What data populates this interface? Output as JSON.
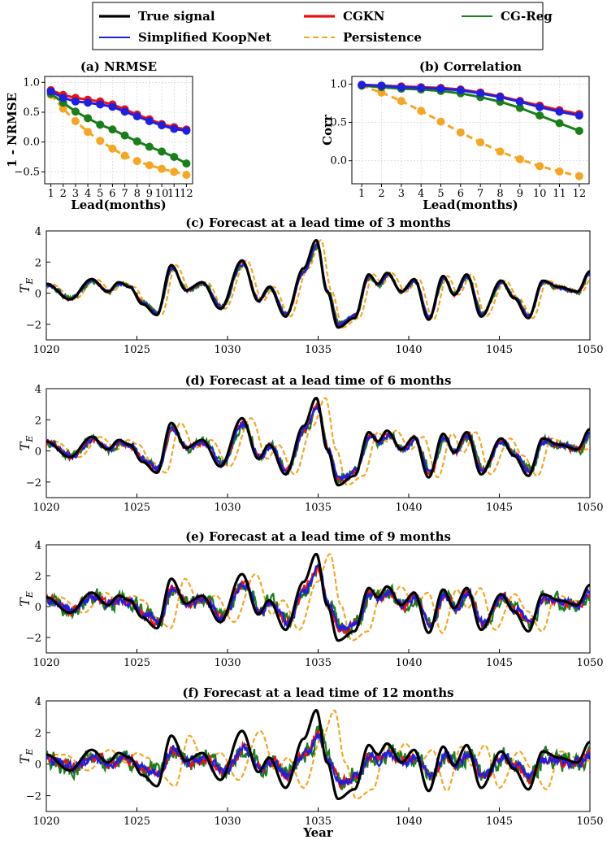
{
  "legend": {
    "entries": [
      {
        "name": "True signal",
        "color": "#000000",
        "dash": false
      },
      {
        "name": "Simplified KoopNet",
        "color": "#1f1fe0",
        "dash": false
      },
      {
        "name": "CGKN",
        "color": "#ee1111",
        "dash": false
      },
      {
        "name": "Persistence",
        "color": "#f5a623",
        "dash": true
      },
      {
        "name": "CG-Reg",
        "color": "#1a7f1a",
        "dash": false
      }
    ]
  },
  "chart_data": [
    {
      "type": "line",
      "title": "(a) NRMSE",
      "xlabel": "Lead(months)",
      "ylabel": "1 - NRMSE",
      "x": [
        1,
        2,
        3,
        4,
        5,
        6,
        7,
        8,
        9,
        10,
        11,
        12
      ],
      "xlim": [
        0.5,
        12.5
      ],
      "ylim": [
        -0.7,
        1.1
      ],
      "yticks": [
        1.0,
        0.5,
        0.0,
        -0.5
      ],
      "ytick_labels": [
        "1.0",
        "0.5",
        "0.0",
        "−0.5"
      ],
      "series": [
        {
          "name": "Persistence",
          "color": "#f5a623",
          "dash": true,
          "values": [
            0.79,
            0.56,
            0.35,
            0.17,
            0.02,
            -0.11,
            -0.23,
            -0.32,
            -0.39,
            -0.45,
            -0.5,
            -0.55
          ]
        },
        {
          "name": "CG-Reg",
          "color": "#1a7f1a",
          "dash": false,
          "values": [
            0.81,
            0.66,
            0.51,
            0.4,
            0.29,
            0.21,
            0.11,
            0.01,
            -0.08,
            -0.16,
            -0.25,
            -0.36
          ]
        },
        {
          "name": "CGKN",
          "color": "#ee1111",
          "dash": false,
          "values": [
            0.87,
            0.79,
            0.74,
            0.71,
            0.68,
            0.63,
            0.55,
            0.46,
            0.38,
            0.3,
            0.25,
            0.21
          ]
        },
        {
          "name": "Simplified KoopNet",
          "color": "#1f1fe0",
          "dash": false,
          "values": [
            0.85,
            0.74,
            0.68,
            0.66,
            0.63,
            0.59,
            0.51,
            0.43,
            0.35,
            0.28,
            0.22,
            0.19
          ]
        }
      ]
    },
    {
      "type": "line",
      "title": "(b) Correlation",
      "xlabel": "Lead(months)",
      "ylabel": "Corr",
      "x": [
        1,
        2,
        3,
        4,
        5,
        6,
        7,
        8,
        9,
        10,
        11,
        12
      ],
      "xlim": [
        0.5,
        12.5
      ],
      "ylim": [
        -0.3,
        1.1
      ],
      "yticks": [
        1.0,
        0.5,
        0.0
      ],
      "ytick_labels": [
        "1.0",
        "0.5",
        "0.0"
      ],
      "series": [
        {
          "name": "Persistence",
          "color": "#f5a623",
          "dash": true,
          "values": [
            0.98,
            0.89,
            0.78,
            0.65,
            0.51,
            0.37,
            0.24,
            0.12,
            0.02,
            -0.07,
            -0.14,
            -0.2
          ]
        },
        {
          "name": "CG-Reg",
          "color": "#1a7f1a",
          "dash": false,
          "values": [
            0.98,
            0.96,
            0.94,
            0.93,
            0.91,
            0.88,
            0.83,
            0.77,
            0.69,
            0.59,
            0.49,
            0.39
          ]
        },
        {
          "name": "CGKN",
          "color": "#ee1111",
          "dash": false,
          "values": [
            0.99,
            0.98,
            0.97,
            0.96,
            0.95,
            0.93,
            0.89,
            0.84,
            0.78,
            0.72,
            0.66,
            0.61
          ]
        },
        {
          "name": "Simplified KoopNet",
          "color": "#1f1fe0",
          "dash": false,
          "values": [
            0.99,
            0.98,
            0.96,
            0.95,
            0.94,
            0.92,
            0.88,
            0.83,
            0.77,
            0.7,
            0.64,
            0.59
          ]
        }
      ]
    },
    {
      "type": "line",
      "title": "(c) Forecast at a lead time of 3 months",
      "ylabel": "T_E",
      "xlabel": "",
      "lead_months": 3,
      "xlim": [
        1020,
        1050
      ],
      "ylim": [
        -3,
        4
      ],
      "yticks": [
        -2,
        0,
        2,
        4
      ],
      "xticks": [
        1020,
        1025,
        1030,
        1035,
        1040,
        1045,
        1050
      ],
      "truth_peaks": [
        [
          1020,
          0.6
        ],
        [
          1021.3,
          -0.4
        ],
        [
          1022.5,
          0.9
        ],
        [
          1023.4,
          0.1
        ],
        [
          1024.0,
          0.7
        ],
        [
          1024.6,
          0.4
        ],
        [
          1025.3,
          -0.7
        ],
        [
          1026.1,
          -1.4
        ],
        [
          1026.9,
          1.8
        ],
        [
          1027.7,
          0.2
        ],
        [
          1028.6,
          0.7
        ],
        [
          1029.6,
          -1.0
        ],
        [
          1030.8,
          2.1
        ],
        [
          1031.7,
          -0.5
        ],
        [
          1032.3,
          0.4
        ],
        [
          1033.2,
          -1.5
        ],
        [
          1034.2,
          1.6
        ],
        [
          1034.9,
          3.4
        ],
        [
          1035.5,
          0.1
        ],
        [
          1036.1,
          -2.2
        ],
        [
          1037.0,
          -1.6
        ],
        [
          1037.8,
          1.2
        ],
        [
          1038.3,
          0.6
        ],
        [
          1038.8,
          1.3
        ],
        [
          1039.6,
          0.1
        ],
        [
          1040.3,
          0.9
        ],
        [
          1041.1,
          -1.7
        ],
        [
          1041.9,
          1.1
        ],
        [
          1042.5,
          -0.1
        ],
        [
          1043.2,
          1.2
        ],
        [
          1044.0,
          -1.5
        ],
        [
          1045.1,
          0.8
        ],
        [
          1045.8,
          -0.3
        ],
        [
          1046.6,
          -1.6
        ],
        [
          1047.4,
          0.8
        ],
        [
          1048.3,
          0.4
        ],
        [
          1049.3,
          0.1
        ],
        [
          1050,
          1.4
        ]
      ],
      "series": [
        {
          "name": "True signal",
          "color": "#000000",
          "dash": false,
          "lag": 0,
          "noise": 0,
          "damp": 1
        },
        {
          "name": "Persistence",
          "color": "#f5a623",
          "dash": true,
          "lag": 0.25,
          "noise": 0,
          "damp": 1
        },
        {
          "name": "CG-Reg",
          "color": "#1a7f1a",
          "dash": false,
          "lag": 0.06,
          "noise": 0.12,
          "damp": 0.88
        },
        {
          "name": "CGKN",
          "color": "#ee1111",
          "dash": false,
          "lag": 0.03,
          "noise": 0.08,
          "damp": 0.92
        },
        {
          "name": "Simplified KoopNet",
          "color": "#1f1fe0",
          "dash": false,
          "lag": 0.04,
          "noise": 0.08,
          "damp": 0.9
        }
      ]
    },
    {
      "type": "line",
      "title": "(d) Forecast at a lead time of 6 months",
      "ylabel": "T_E",
      "xlabel": "",
      "lead_months": 6,
      "xlim": [
        1020,
        1050
      ],
      "ylim": [
        -3,
        4
      ],
      "yticks": [
        -2,
        0,
        2,
        4
      ],
      "xticks": [
        1020,
        1025,
        1030,
        1035,
        1040,
        1045,
        1050
      ],
      "truth_peaks": [
        [
          1020,
          0.6
        ],
        [
          1021.3,
          -0.4
        ],
        [
          1022.5,
          0.9
        ],
        [
          1023.4,
          0.1
        ],
        [
          1024.0,
          0.7
        ],
        [
          1024.6,
          0.4
        ],
        [
          1025.3,
          -0.7
        ],
        [
          1026.1,
          -1.4
        ],
        [
          1026.9,
          1.8
        ],
        [
          1027.7,
          0.2
        ],
        [
          1028.6,
          0.7
        ],
        [
          1029.6,
          -1.0
        ],
        [
          1030.8,
          2.1
        ],
        [
          1031.7,
          -0.5
        ],
        [
          1032.3,
          0.4
        ],
        [
          1033.2,
          -1.5
        ],
        [
          1034.2,
          1.6
        ],
        [
          1034.9,
          3.4
        ],
        [
          1035.5,
          0.1
        ],
        [
          1036.1,
          -2.2
        ],
        [
          1037.0,
          -1.6
        ],
        [
          1037.8,
          1.2
        ],
        [
          1038.3,
          0.6
        ],
        [
          1038.8,
          1.3
        ],
        [
          1039.6,
          0.1
        ],
        [
          1040.3,
          0.9
        ],
        [
          1041.1,
          -1.7
        ],
        [
          1041.9,
          1.1
        ],
        [
          1042.5,
          -0.1
        ],
        [
          1043.2,
          1.2
        ],
        [
          1044.0,
          -1.5
        ],
        [
          1045.1,
          0.8
        ],
        [
          1045.8,
          -0.3
        ],
        [
          1046.6,
          -1.6
        ],
        [
          1047.4,
          0.8
        ],
        [
          1048.3,
          0.4
        ],
        [
          1049.3,
          0.1
        ],
        [
          1050,
          1.4
        ]
      ],
      "series": [
        {
          "name": "True signal",
          "color": "#000000",
          "dash": false,
          "lag": 0,
          "noise": 0,
          "damp": 1
        },
        {
          "name": "Persistence",
          "color": "#f5a623",
          "dash": true,
          "lag": 0.5,
          "noise": 0,
          "damp": 1
        },
        {
          "name": "CG-Reg",
          "color": "#1a7f1a",
          "dash": false,
          "lag": 0.1,
          "noise": 0.22,
          "damp": 0.8
        },
        {
          "name": "CGKN",
          "color": "#ee1111",
          "dash": false,
          "lag": 0.06,
          "noise": 0.15,
          "damp": 0.85
        },
        {
          "name": "Simplified KoopNet",
          "color": "#1f1fe0",
          "dash": false,
          "lag": 0.07,
          "noise": 0.15,
          "damp": 0.82
        }
      ]
    },
    {
      "type": "line",
      "title": "(e) Forecast at a lead time of 9 months",
      "ylabel": "T_E",
      "xlabel": "",
      "lead_months": 9,
      "xlim": [
        1020,
        1050
      ],
      "ylim": [
        -3,
        4
      ],
      "yticks": [
        -2,
        0,
        2,
        4
      ],
      "xticks": [
        1020,
        1025,
        1030,
        1035,
        1040,
        1045,
        1050
      ],
      "truth_peaks": [
        [
          1020,
          0.6
        ],
        [
          1021.3,
          -0.4
        ],
        [
          1022.5,
          0.9
        ],
        [
          1023.4,
          0.1
        ],
        [
          1024.0,
          0.7
        ],
        [
          1024.6,
          0.4
        ],
        [
          1025.3,
          -0.7
        ],
        [
          1026.1,
          -1.4
        ],
        [
          1026.9,
          1.8
        ],
        [
          1027.7,
          0.2
        ],
        [
          1028.6,
          0.7
        ],
        [
          1029.6,
          -1.0
        ],
        [
          1030.8,
          2.1
        ],
        [
          1031.7,
          -0.5
        ],
        [
          1032.3,
          0.4
        ],
        [
          1033.2,
          -1.5
        ],
        [
          1034.2,
          1.6
        ],
        [
          1034.9,
          3.4
        ],
        [
          1035.5,
          0.1
        ],
        [
          1036.1,
          -2.2
        ],
        [
          1037.0,
          -1.6
        ],
        [
          1037.8,
          1.2
        ],
        [
          1038.3,
          0.6
        ],
        [
          1038.8,
          1.3
        ],
        [
          1039.6,
          0.1
        ],
        [
          1040.3,
          0.9
        ],
        [
          1041.1,
          -1.7
        ],
        [
          1041.9,
          1.1
        ],
        [
          1042.5,
          -0.1
        ],
        [
          1043.2,
          1.2
        ],
        [
          1044.0,
          -1.5
        ],
        [
          1045.1,
          0.8
        ],
        [
          1045.8,
          -0.3
        ],
        [
          1046.6,
          -1.6
        ],
        [
          1047.4,
          0.8
        ],
        [
          1048.3,
          0.4
        ],
        [
          1049.3,
          0.1
        ],
        [
          1050,
          1.4
        ]
      ],
      "series": [
        {
          "name": "True signal",
          "color": "#000000",
          "dash": false,
          "lag": 0,
          "noise": 0,
          "damp": 1
        },
        {
          "name": "Persistence",
          "color": "#f5a623",
          "dash": true,
          "lag": 0.75,
          "noise": 0,
          "damp": 1
        },
        {
          "name": "CG-Reg",
          "color": "#1a7f1a",
          "dash": false,
          "lag": 0.14,
          "noise": 0.38,
          "damp": 0.7
        },
        {
          "name": "CGKN",
          "color": "#ee1111",
          "dash": false,
          "lag": 0.09,
          "noise": 0.22,
          "damp": 0.72
        },
        {
          "name": "Simplified KoopNet",
          "color": "#1f1fe0",
          "dash": false,
          "lag": 0.1,
          "noise": 0.22,
          "damp": 0.7
        }
      ]
    },
    {
      "type": "line",
      "title": "(f) Forecast at a lead time of 12 months",
      "ylabel": "T_E",
      "xlabel": "Year",
      "lead_months": 12,
      "xlim": [
        1020,
        1050
      ],
      "ylim": [
        -3,
        4
      ],
      "yticks": [
        -2,
        0,
        2,
        4
      ],
      "xticks": [
        1020,
        1025,
        1030,
        1035,
        1040,
        1045,
        1050
      ],
      "truth_peaks": [
        [
          1020,
          0.6
        ],
        [
          1021.3,
          -0.4
        ],
        [
          1022.5,
          0.9
        ],
        [
          1023.4,
          0.1
        ],
        [
          1024.0,
          0.7
        ],
        [
          1024.6,
          0.4
        ],
        [
          1025.3,
          -0.7
        ],
        [
          1026.1,
          -1.4
        ],
        [
          1026.9,
          1.8
        ],
        [
          1027.7,
          0.2
        ],
        [
          1028.6,
          0.7
        ],
        [
          1029.6,
          -1.0
        ],
        [
          1030.8,
          2.1
        ],
        [
          1031.7,
          -0.5
        ],
        [
          1032.3,
          0.4
        ],
        [
          1033.2,
          -1.5
        ],
        [
          1034.2,
          1.6
        ],
        [
          1034.9,
          3.4
        ],
        [
          1035.5,
          0.1
        ],
        [
          1036.1,
          -2.2
        ],
        [
          1037.0,
          -1.6
        ],
        [
          1037.8,
          1.2
        ],
        [
          1038.3,
          0.6
        ],
        [
          1038.8,
          1.3
        ],
        [
          1039.6,
          0.1
        ],
        [
          1040.3,
          0.9
        ],
        [
          1041.1,
          -1.7
        ],
        [
          1041.9,
          1.1
        ],
        [
          1042.5,
          -0.1
        ],
        [
          1043.2,
          1.2
        ],
        [
          1044.0,
          -1.5
        ],
        [
          1045.1,
          0.8
        ],
        [
          1045.8,
          -0.3
        ],
        [
          1046.6,
          -1.6
        ],
        [
          1047.4,
          0.8
        ],
        [
          1048.3,
          0.4
        ],
        [
          1049.3,
          0.1
        ],
        [
          1050,
          1.4
        ]
      ],
      "series": [
        {
          "name": "True signal",
          "color": "#000000",
          "dash": false,
          "lag": 0,
          "noise": 0,
          "damp": 1
        },
        {
          "name": "Persistence",
          "color": "#f5a623",
          "dash": true,
          "lag": 1.0,
          "noise": 0,
          "damp": 1
        },
        {
          "name": "CG-Reg",
          "color": "#1a7f1a",
          "dash": false,
          "lag": 0.18,
          "noise": 0.48,
          "damp": 0.5
        },
        {
          "name": "CGKN",
          "color": "#ee1111",
          "dash": false,
          "lag": 0.12,
          "noise": 0.25,
          "damp": 0.5
        },
        {
          "name": "Simplified KoopNet",
          "color": "#1f1fe0",
          "dash": false,
          "lag": 0.12,
          "noise": 0.25,
          "damp": 0.48
        }
      ]
    }
  ]
}
